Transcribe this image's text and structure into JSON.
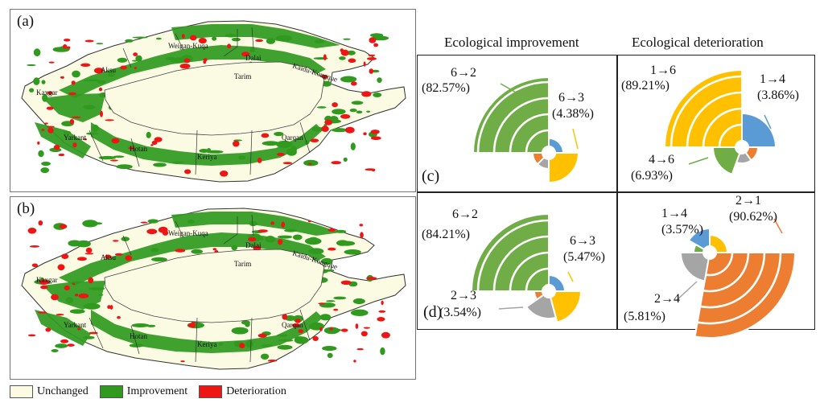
{
  "map_panels": [
    {
      "letter": "(a)",
      "labels": [
        "Weigan-Kuqa",
        "Dalai",
        "Kaidu-Kongque",
        "Aksu",
        "Tarim",
        "Kaxgar",
        "Yarkant",
        "Hotan",
        "Keriya",
        "Qarqan"
      ]
    },
    {
      "letter": "(b)",
      "labels": [
        "Weigan-Kuqa",
        "Dalai",
        "Kaidu-Kongque",
        "Aksu",
        "Tarim",
        "Kaxgar",
        "Yarkant",
        "Hotan",
        "Keriya",
        "Qarqan"
      ]
    }
  ],
  "legend": [
    {
      "label": "Unchanged",
      "color": "#fbfbe4"
    },
    {
      "label": "Improvement",
      "color": "#2f9a1e"
    },
    {
      "label": "Deterioration",
      "color": "#ee1515"
    }
  ],
  "column_headers": [
    "Ecological improvement",
    "Ecological deterioration"
  ],
  "class_colors": {
    "1": "#5b9bd5",
    "2": "#ed7d31",
    "3": "#a5a5a5",
    "4": "#ffc000",
    "6": "#70ad47"
  },
  "rose_panels": [
    {
      "letter": "(c)",
      "annotations": [
        {
          "transition": "6→2",
          "percent": "(82.57%)"
        },
        {
          "transition": "6→3",
          "percent": "(4.38%)"
        }
      ]
    },
    {
      "letter": "",
      "annotations": [
        {
          "transition": "1→6",
          "percent": "(89.21%)"
        },
        {
          "transition": "1→4",
          "percent": "(3.86%)"
        },
        {
          "transition": "4→6",
          "percent": "(6.93%)"
        }
      ]
    },
    {
      "letter": "(d)",
      "annotations": [
        {
          "transition": "6→2",
          "percent": "(84.21%)"
        },
        {
          "transition": "6→3",
          "percent": "(5.47%)"
        },
        {
          "transition": "2→3",
          "percent": "(3.54%)"
        }
      ]
    },
    {
      "letter": "",
      "annotations": [
        {
          "transition": "1→4",
          "percent": "(3.57%)"
        },
        {
          "transition": "2→1",
          "percent": "(90.62%)"
        },
        {
          "transition": "2→4",
          "percent": "(5.81%)"
        }
      ]
    }
  ]
}
